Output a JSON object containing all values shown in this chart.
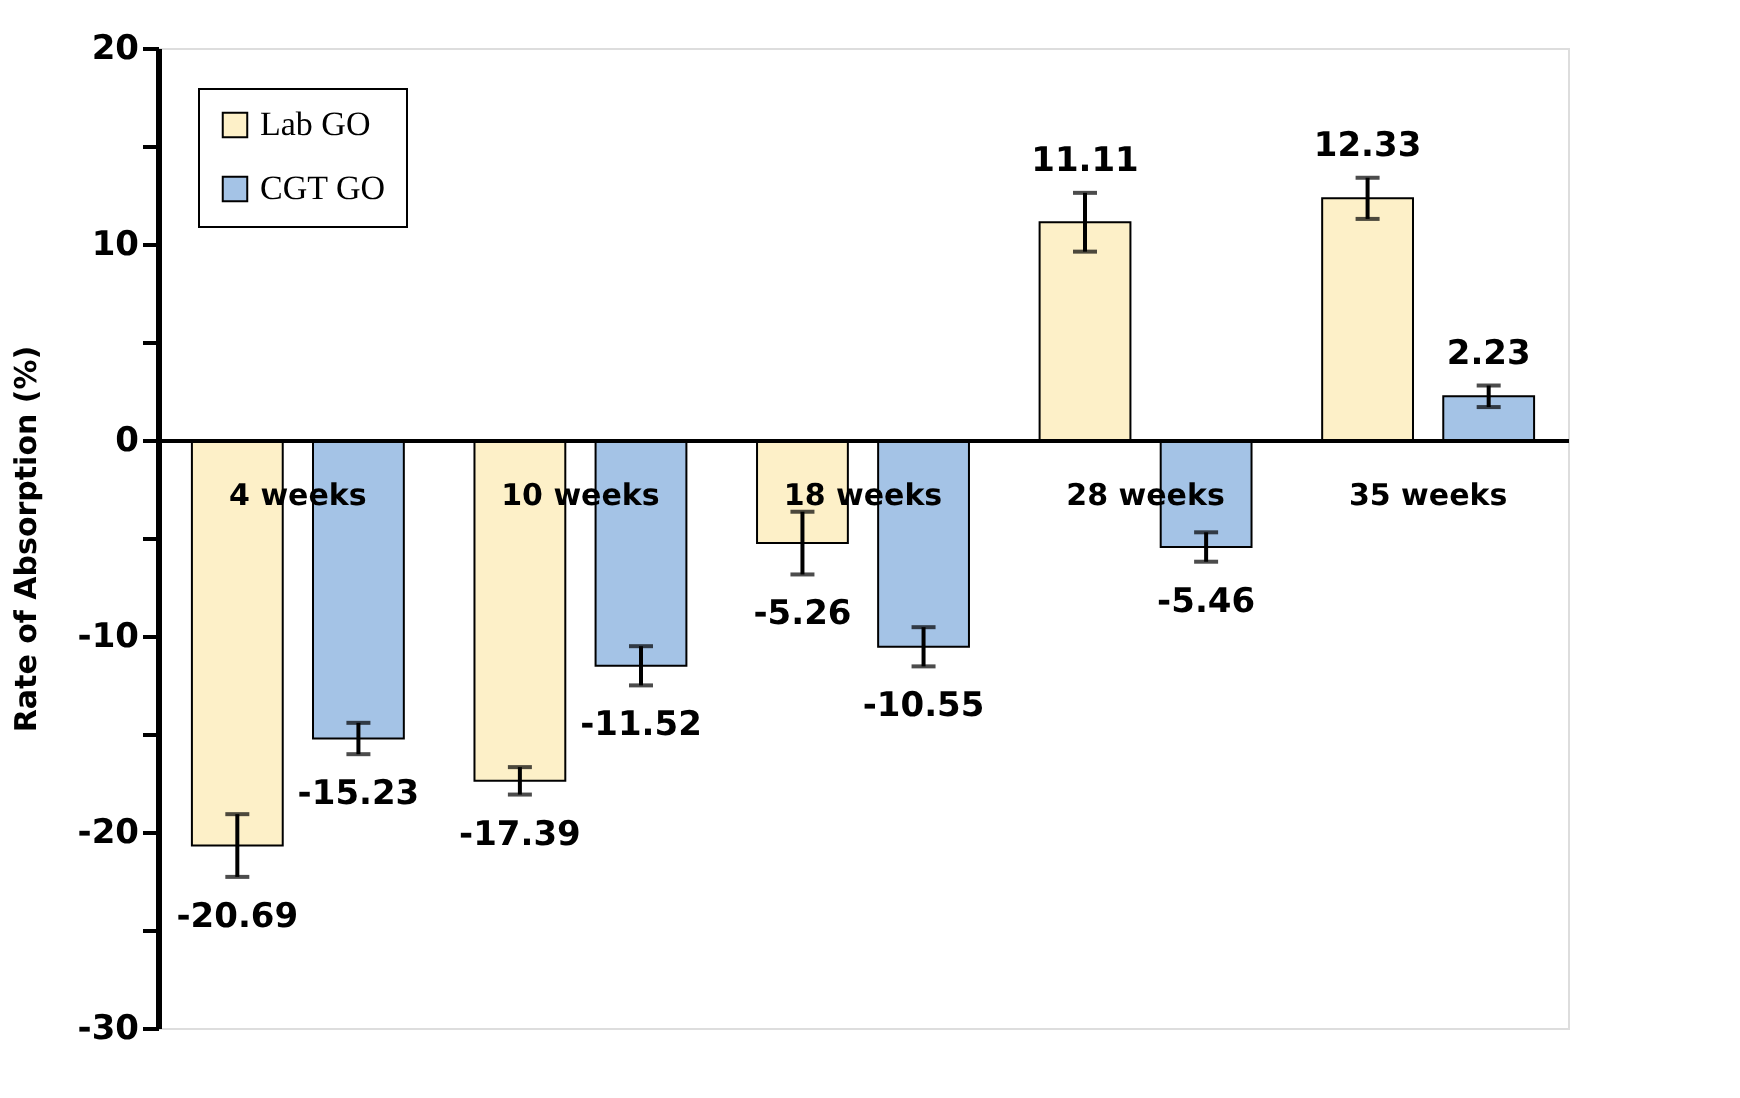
{
  "chart_data": {
    "type": "bar",
    "ylabel": "Rate of Absorption (%)",
    "categories": [
      "4 weeks",
      "10 weeks",
      "18 weeks",
      "28 weeks",
      "35 weeks"
    ],
    "series": [
      {
        "name": "Lab GO",
        "color": "#fdf0c8",
        "values": [
          -20.69,
          -17.39,
          -5.26,
          11.11,
          12.33
        ],
        "errors": [
          1.6,
          0.7,
          1.6,
          1.5,
          1.05
        ]
      },
      {
        "name": "CGT GO",
        "color": "#a4c3e6",
        "values": [
          -15.23,
          -11.52,
          -10.55,
          -5.46,
          2.23
        ],
        "errors": [
          0.8,
          1.0,
          1.0,
          0.75,
          0.55
        ]
      }
    ],
    "ylim": [
      -30,
      20
    ],
    "yticks": [
      -30,
      {
        "value": -25,
        "label": null
      },
      -20,
      {
        "value": -15,
        "label": null
      },
      -10,
      {
        "value": -5,
        "label": null
      },
      0,
      {
        "value": 5,
        "label": null
      },
      10,
      {
        "value": 15,
        "label": null
      },
      20
    ],
    "data_labels": true,
    "legend": "top left",
    "grid": false
  }
}
